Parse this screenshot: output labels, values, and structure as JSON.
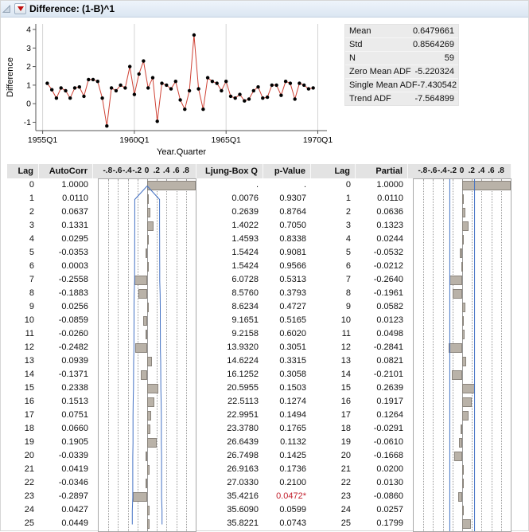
{
  "header": {
    "title": "Difference: (1-B)^1"
  },
  "tsplot": {
    "ylabel": "Difference",
    "xlabel": "Year.Quarter",
    "yticks": [
      "4",
      "3",
      "2",
      "1",
      "0",
      "-1"
    ],
    "xticks": [
      "1955Q1",
      "1960Q1",
      "1965Q1",
      "1970Q1"
    ]
  },
  "stats": {
    "rows": [
      {
        "label": "Mean",
        "value": "0.6479661"
      },
      {
        "label": "Std",
        "value": "0.8564269"
      },
      {
        "label": "N",
        "value": "59"
      },
      {
        "label": "Zero Mean ADF",
        "value": "-5.220324"
      },
      {
        "label": "Single Mean ADF",
        "value": "-7.430542"
      },
      {
        "label": "Trend ADF",
        "value": "-7.564899"
      }
    ]
  },
  "table": {
    "headers": {
      "lag": "Lag",
      "autocorr": "AutoCorr",
      "ljung": "Ljung-Box Q",
      "pvalue": "p-Value",
      "lag2": "Lag",
      "partial": "Partial"
    },
    "tick_labels": [
      "-.8",
      "-.6",
      "-.4",
      "-.2",
      "0",
      ".2",
      ".4",
      ".6",
      ".8"
    ],
    "rows": [
      {
        "lag": "0",
        "autocorr": "1.0000",
        "ljung": ".",
        "pvalue": ".",
        "partial": "1.0000"
      },
      {
        "lag": "1",
        "autocorr": "0.0110",
        "ljung": "0.0076",
        "pvalue": "0.9307",
        "partial": "0.0110"
      },
      {
        "lag": "2",
        "autocorr": "0.0637",
        "ljung": "0.2639",
        "pvalue": "0.8764",
        "partial": "0.0636"
      },
      {
        "lag": "3",
        "autocorr": "0.1331",
        "ljung": "1.4022",
        "pvalue": "0.7050",
        "partial": "0.1323"
      },
      {
        "lag": "4",
        "autocorr": "0.0295",
        "ljung": "1.4593",
        "pvalue": "0.8338",
        "partial": "0.0244"
      },
      {
        "lag": "5",
        "autocorr": "-0.0353",
        "ljung": "1.5424",
        "pvalue": "0.9081",
        "partial": "-0.0532"
      },
      {
        "lag": "6",
        "autocorr": "0.0003",
        "ljung": "1.5424",
        "pvalue": "0.9566",
        "partial": "-0.0212"
      },
      {
        "lag": "7",
        "autocorr": "-0.2558",
        "ljung": "6.0728",
        "pvalue": "0.5313",
        "partial": "-0.2640"
      },
      {
        "lag": "8",
        "autocorr": "-0.1883",
        "ljung": "8.5760",
        "pvalue": "0.3793",
        "partial": "-0.1961"
      },
      {
        "lag": "9",
        "autocorr": "0.0256",
        "ljung": "8.6234",
        "pvalue": "0.4727",
        "partial": "0.0582"
      },
      {
        "lag": "10",
        "autocorr": "-0.0859",
        "ljung": "9.1651",
        "pvalue": "0.5165",
        "partial": "0.0123"
      },
      {
        "lag": "11",
        "autocorr": "-0.0260",
        "ljung": "9.2158",
        "pvalue": "0.6020",
        "partial": "0.0498"
      },
      {
        "lag": "12",
        "autocorr": "-0.2482",
        "ljung": "13.9320",
        "pvalue": "0.3051",
        "partial": "-0.2841"
      },
      {
        "lag": "13",
        "autocorr": "0.0939",
        "ljung": "14.6224",
        "pvalue": "0.3315",
        "partial": "0.0821"
      },
      {
        "lag": "14",
        "autocorr": "-0.1371",
        "ljung": "16.1252",
        "pvalue": "0.3058",
        "partial": "-0.2101"
      },
      {
        "lag": "15",
        "autocorr": "0.2338",
        "ljung": "20.5955",
        "pvalue": "0.1503",
        "partial": "0.2639"
      },
      {
        "lag": "16",
        "autocorr": "0.1513",
        "ljung": "22.5113",
        "pvalue": "0.1274",
        "partial": "0.1917"
      },
      {
        "lag": "17",
        "autocorr": "0.0751",
        "ljung": "22.9951",
        "pvalue": "0.1494",
        "partial": "0.1264"
      },
      {
        "lag": "18",
        "autocorr": "0.0660",
        "ljung": "23.3780",
        "pvalue": "0.1765",
        "partial": "-0.0291"
      },
      {
        "lag": "19",
        "autocorr": "0.1905",
        "ljung": "26.6439",
        "pvalue": "0.1132",
        "partial": "-0.0610"
      },
      {
        "lag": "20",
        "autocorr": "-0.0339",
        "ljung": "26.7498",
        "pvalue": "0.1425",
        "partial": "-0.1668"
      },
      {
        "lag": "21",
        "autocorr": "0.0419",
        "ljung": "26.9163",
        "pvalue": "0.1736",
        "partial": "0.0200"
      },
      {
        "lag": "22",
        "autocorr": "-0.0346",
        "ljung": "27.0330",
        "pvalue": "0.2100",
        "partial": "0.0130"
      },
      {
        "lag": "23",
        "autocorr": "-0.2897",
        "ljung": "35.4216",
        "pvalue": "0.0472*",
        "partial": "-0.0860"
      },
      {
        "lag": "24",
        "autocorr": "0.0427",
        "ljung": "35.6090",
        "pvalue": "0.0599",
        "partial": "0.0257"
      },
      {
        "lag": "25",
        "autocorr": "0.0449",
        "ljung": "35.8221",
        "pvalue": "0.0743",
        "partial": "0.1799"
      }
    ],
    "acf_bounds": [
      0,
      0.2552,
      0.2552,
      0.2557,
      0.258,
      0.2581,
      0.2582,
      0.2582,
      0.2664,
      0.2707,
      0.2708,
      0.2717,
      0.2718,
      0.2791,
      0.2801,
      0.2823,
      0.2886,
      0.2912,
      0.2918,
      0.2923,
      0.2964,
      0.2965,
      0.2967,
      0.2969,
      0.3061,
      0.3063
    ],
    "pacf_bound": 0.2552
  },
  "colors": {
    "series_line": "#cf4134",
    "marker": "#000000",
    "confidence": "#4472c4",
    "bar_fill": "#b9b2a8",
    "bar_border": "#8a847c",
    "sig_pvalue": "#c2212e",
    "header_bg": "#e3e3e3",
    "stats_bg": "#ebebeb"
  },
  "chart_data": [
    {
      "type": "line",
      "title": "Difference: (1-B)^1",
      "xlabel": "Year.Quarter",
      "ylabel": "Difference",
      "x_first": "1955Q2",
      "x_last": "1969Q4",
      "xticks": [
        "1955Q1",
        "1960Q1",
        "1965Q1",
        "1970Q1"
      ],
      "ylim": [
        -1.5,
        4
      ],
      "yticks": [
        -1,
        0,
        1,
        2,
        3,
        4
      ],
      "values": [
        1.1,
        0.75,
        0.3,
        0.85,
        0.7,
        0.3,
        0.85,
        0.9,
        0.4,
        1.3,
        1.3,
        1.2,
        0.3,
        -1.2,
        0.85,
        0.7,
        1.0,
        0.85,
        2.0,
        0.5,
        1.6,
        2.3,
        0.85,
        1.4,
        -0.95,
        1.1,
        1.0,
        0.8,
        1.2,
        0.2,
        -0.3,
        0.7,
        3.7,
        0.8,
        -0.3,
        1.4,
        1.2,
        1.1,
        0.7,
        1.2,
        0.4,
        0.3,
        0.5,
        0.15,
        0.25,
        0.7,
        0.9,
        0.3,
        0.35,
        1.0,
        1.0,
        0.45,
        1.2,
        1.1,
        0.25,
        1.1,
        1.0,
        0.8,
        0.85
      ]
    },
    {
      "type": "bar",
      "title": "AutoCorr by Lag",
      "categories": [
        0,
        1,
        2,
        3,
        4,
        5,
        6,
        7,
        8,
        9,
        10,
        11,
        12,
        13,
        14,
        15,
        16,
        17,
        18,
        19,
        20,
        21,
        22,
        23,
        24,
        25
      ],
      "values": [
        1.0,
        0.011,
        0.0637,
        0.1331,
        0.0295,
        -0.0353,
        0.0003,
        -0.2558,
        -0.1883,
        0.0256,
        -0.0859,
        -0.026,
        -0.2482,
        0.0939,
        -0.1371,
        0.2338,
        0.1513,
        0.0751,
        0.066,
        0.1905,
        -0.0339,
        0.0419,
        -0.0346,
        -0.2897,
        0.0427,
        0.0449
      ],
      "xlim": [
        -1,
        1
      ]
    },
    {
      "type": "bar",
      "title": "Partial by Lag",
      "categories": [
        0,
        1,
        2,
        3,
        4,
        5,
        6,
        7,
        8,
        9,
        10,
        11,
        12,
        13,
        14,
        15,
        16,
        17,
        18,
        19,
        20,
        21,
        22,
        23,
        24,
        25
      ],
      "values": [
        1.0,
        0.011,
        0.0636,
        0.1323,
        0.0244,
        -0.0532,
        -0.0212,
        -0.264,
        -0.1961,
        0.0582,
        0.0123,
        0.0498,
        -0.2841,
        0.0821,
        -0.2101,
        0.2639,
        0.1917,
        0.1264,
        -0.0291,
        -0.061,
        -0.1668,
        0.02,
        0.013,
        -0.086,
        0.0257,
        0.1799
      ],
      "xlim": [
        -1,
        1
      ]
    }
  ]
}
